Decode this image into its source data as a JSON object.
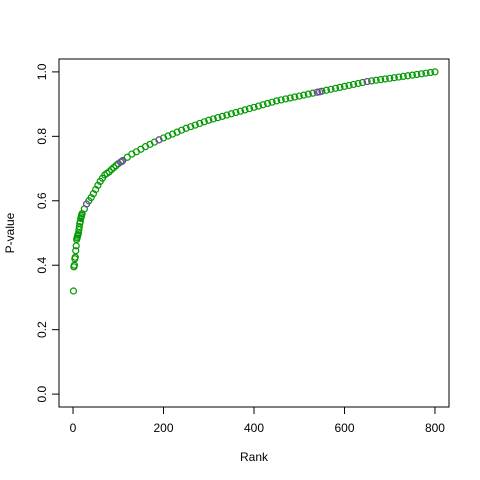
{
  "chart_data": {
    "type": "scatter",
    "x_label": "Rank",
    "y_label": "P-value",
    "xlim": [
      -31,
      831
    ],
    "ylim": [
      -0.04,
      1.04
    ],
    "xticks": [
      0,
      200,
      400,
      600,
      800
    ],
    "yticks": [
      {
        "value": 0,
        "label": "0.0"
      },
      0.2,
      0.4,
      0.6,
      0.8,
      {
        "value": 1,
        "label": "1.0"
      }
    ],
    "series": [
      {
        "color": "#009900",
        "x": [
          1,
          2,
          3,
          4,
          5,
          6,
          7,
          8,
          9,
          10,
          11,
          12,
          13,
          14,
          15,
          16,
          17,
          18,
          19,
          20,
          25,
          30,
          35,
          40,
          45,
          50,
          55,
          60,
          65,
          70,
          75,
          80,
          85,
          90,
          95,
          100,
          110,
          120,
          130,
          140,
          150,
          160,
          170,
          180,
          190,
          200,
          210,
          220,
          230,
          240,
          250,
          260,
          270,
          280,
          290,
          300,
          310,
          320,
          330,
          340,
          350,
          360,
          370,
          380,
          390,
          400,
          410,
          420,
          430,
          440,
          450,
          460,
          470,
          480,
          490,
          500,
          510,
          520,
          530,
          540,
          550,
          560,
          570,
          580,
          590,
          600,
          610,
          620,
          630,
          640,
          650,
          660,
          670,
          680,
          690,
          700,
          710,
          720,
          730,
          740,
          750,
          760,
          770,
          780,
          790,
          800
        ],
        "values": [
          0.32,
          0.395,
          0.4,
          0.42,
          0.425,
          0.445,
          0.46,
          0.48,
          0.485,
          0.49,
          0.495,
          0.5,
          0.51,
          0.52,
          0.53,
          0.535,
          0.545,
          0.55,
          0.555,
          0.56,
          0.575,
          0.59,
          0.6,
          0.61,
          0.622,
          0.635,
          0.648,
          0.66,
          0.67,
          0.68,
          0.685,
          0.69,
          0.697,
          0.703,
          0.709,
          0.715,
          0.725,
          0.735,
          0.745,
          0.752,
          0.76,
          0.768,
          0.775,
          0.782,
          0.789,
          0.795,
          0.801,
          0.807,
          0.813,
          0.819,
          0.825,
          0.83,
          0.835,
          0.84,
          0.845,
          0.85,
          0.854,
          0.858,
          0.862,
          0.866,
          0.87,
          0.874,
          0.878,
          0.882,
          0.886,
          0.89,
          0.894,
          0.898,
          0.902,
          0.906,
          0.91,
          0.913,
          0.916,
          0.919,
          0.922,
          0.925,
          0.928,
          0.931,
          0.934,
          0.937,
          0.94,
          0.943,
          0.946,
          0.949,
          0.952,
          0.955,
          0.958,
          0.961,
          0.964,
          0.967,
          0.97,
          0.972,
          0.974,
          0.976,
          0.978,
          0.98,
          0.982,
          0.984,
          0.986,
          0.988,
          0.99,
          0.992,
          0.994,
          0.996,
          0.998,
          1.0
        ]
      },
      {
        "color": "#8040b0",
        "x": [
          30,
          105,
          108,
          190,
          540,
          545,
          650
        ],
        "values": [
          0.59,
          0.72,
          0.722,
          0.789,
          0.937,
          0.938,
          0.97
        ]
      }
    ]
  }
}
